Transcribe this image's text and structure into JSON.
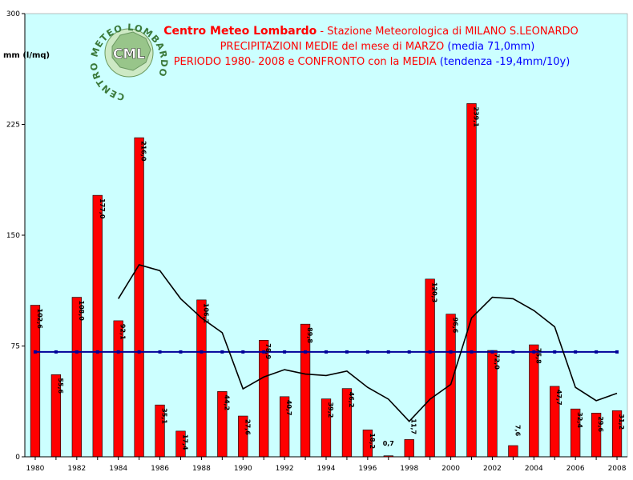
{
  "header": {
    "line1_brand": "Centro Meteo Lombardo",
    "line1_rest": " - Stazione Meteorologica di MILANO S.LEONARDO",
    "line2_main": "PRECIPITAZIONI MEDIE del mese di MARZO ",
    "line2_note": "(media 71,0mm)",
    "line3_main": "PERIODO 1980- 2008 e CONFRONTO con la MEDIA ",
    "line3_note": "(tendenza -19,4mm/10y)"
  },
  "logo": {
    "center_text": "CML",
    "ring_text": "CENTRO METEO LOMBARDO"
  },
  "colors": {
    "plot_bg": "#ccffff",
    "bar": "#ff0000",
    "mean_line": "#000099",
    "trend_line": "#000000",
    "title_red": "#ff0000",
    "title_blue": "#0000ff"
  },
  "chart_data": {
    "type": "bar",
    "ylabel": "mm (l/mq)",
    "ylim": [
      0,
      300
    ],
    "yticks": [
      0,
      75,
      150,
      225,
      300
    ],
    "grid": false,
    "categories": [
      "1980",
      "1981",
      "1982",
      "1983",
      "1984",
      "1985",
      "1986",
      "1987",
      "1988",
      "1989",
      "1990",
      "1991",
      "1992",
      "1993",
      "1994",
      "1995",
      "1996",
      "1997",
      "1998",
      "1999",
      "2000",
      "2001",
      "2002",
      "2003",
      "2004",
      "2005",
      "2006",
      "2007",
      "2008"
    ],
    "xtick_labels": [
      "1980",
      "1982",
      "1984",
      "1986",
      "1988",
      "1990",
      "1992",
      "1994",
      "1996",
      "1998",
      "2000",
      "2002",
      "2004",
      "2006",
      "2008"
    ],
    "values": [
      102.6,
      55.6,
      108.0,
      177.0,
      92.1,
      216.0,
      35.1,
      17.4,
      106.2,
      44.2,
      27.6,
      78.9,
      40.7,
      89.8,
      39.2,
      46.2,
      18.2,
      0.7,
      11.7,
      120.3,
      96.6,
      239.1,
      72.0,
      7.6,
      75.8,
      47.7,
      32.4,
      29.6,
      31.2
    ],
    "value_labels": [
      "102,6",
      "55,6",
      "108,0",
      "177,0",
      "92,1",
      "216,0",
      "35,1",
      "17,4",
      "106,2",
      "44,2",
      "27,6",
      "78,9",
      "40,7",
      "89,8",
      "39,2",
      "46,2",
      "18,2",
      "0,7",
      "11,7",
      "120,3",
      "96,6",
      "239,1",
      "72,0",
      "7,6",
      "75,8",
      "47,7",
      "32,4",
      "29,6",
      "31,2"
    ],
    "mean_value": 71.0,
    "moving_average": [
      null,
      null,
      null,
      null,
      107,
      130,
      126,
      107,
      94,
      84,
      46,
      54,
      59,
      56,
      55,
      58,
      47,
      39,
      24,
      39,
      49,
      94,
      108,
      107,
      99,
      88,
      47,
      38,
      43
    ]
  }
}
